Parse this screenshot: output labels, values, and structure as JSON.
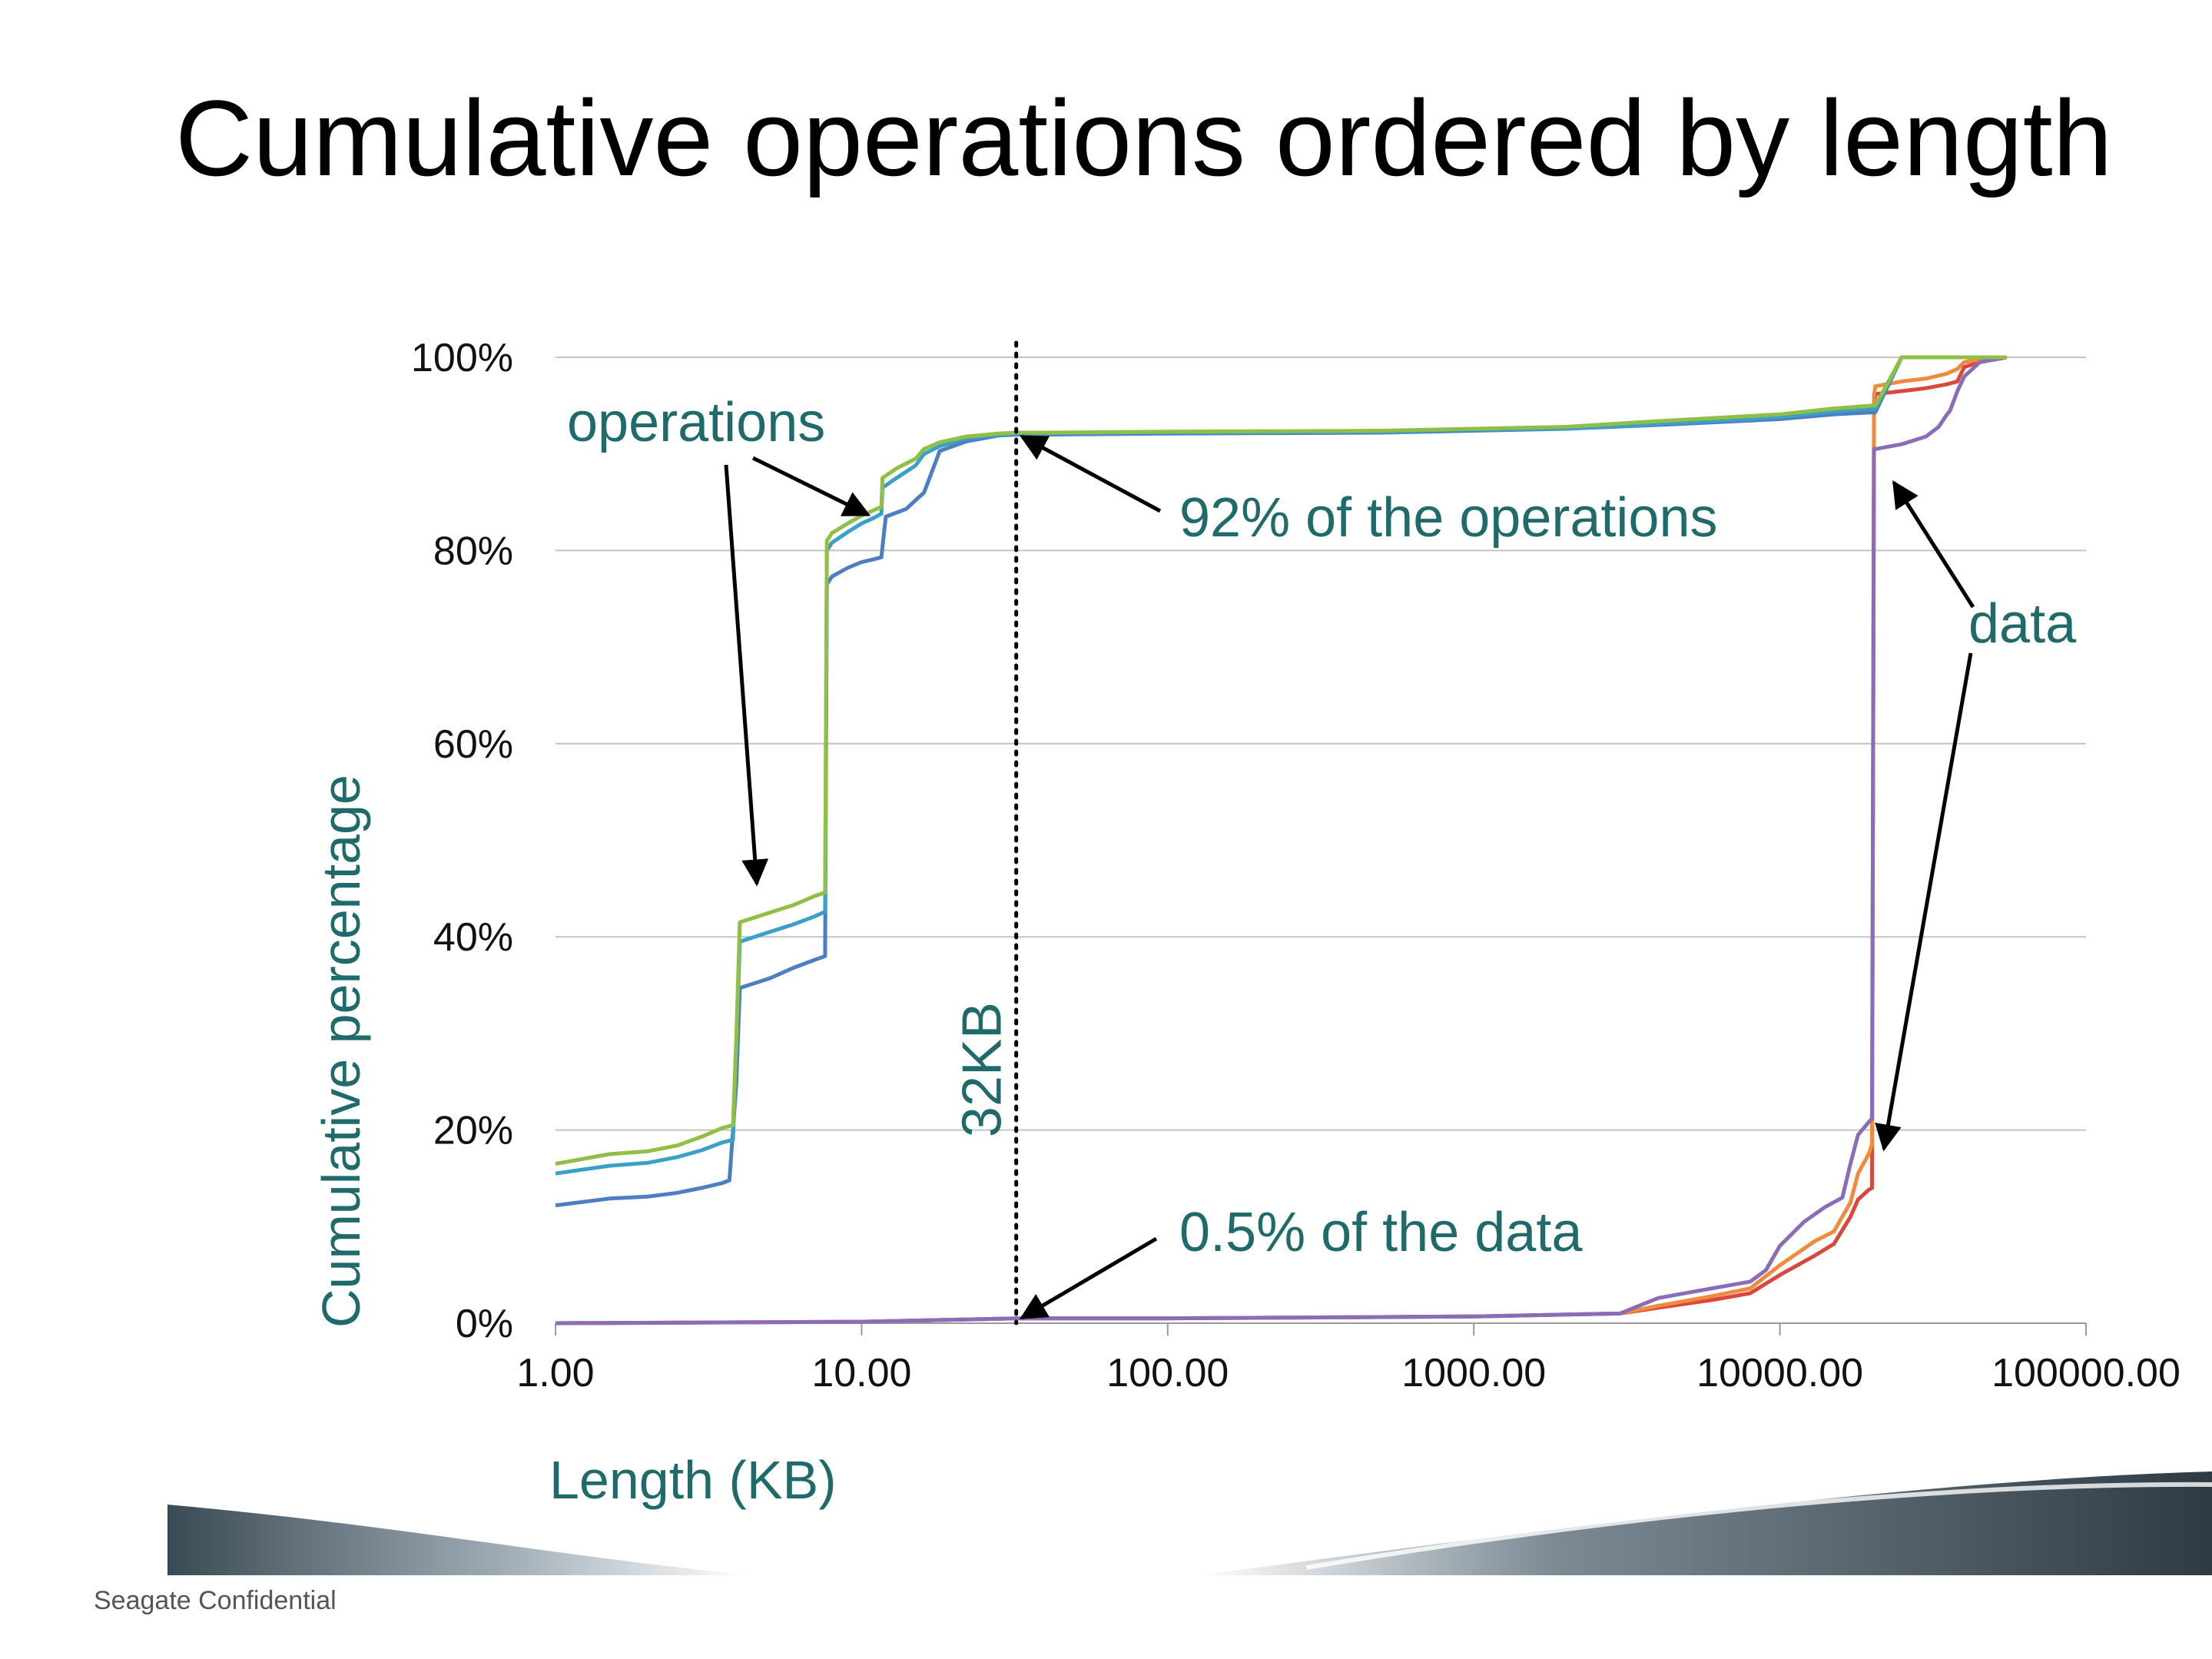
{
  "slide": {
    "title": "Cumulative operations ordered by length",
    "footer": "Seagate Confidential"
  },
  "chart_data": {
    "type": "line",
    "xscale": "log",
    "xlim": [
      1,
      100000
    ],
    "ylim": [
      0,
      100
    ],
    "grid": true,
    "xlabel": "Length (KB)",
    "ylabel": "Cumulative percentage",
    "xticks": [
      "1.00",
      "10.00",
      "100.00",
      "1000.00",
      "10000.00",
      "100000.00"
    ],
    "yticks": [
      "0%",
      "20%",
      "40%",
      "60%",
      "80%",
      "100%"
    ],
    "reference_line": {
      "x": 32,
      "label": "32KB"
    },
    "annotations": {
      "operations": "operations",
      "ops_pct": "92% of the operations",
      "data": "data",
      "data_pct": "0.5% of the data"
    },
    "series": [
      {
        "group": "operations",
        "color": "#8fbf45",
        "x": [
          1,
          1.5,
          2,
          2.5,
          3,
          3.5,
          3.8,
          3.9,
          4,
          5,
          6,
          7,
          7.6,
          7.7,
          8,
          9,
          10,
          11,
          11.6,
          11.7,
          13,
          15,
          16,
          18,
          22,
          28,
          32,
          40,
          100,
          500,
          1000,
          2000,
          4000,
          10000,
          15000,
          20000,
          20500,
          25000,
          40000,
          55000
        ],
        "y": [
          16.5,
          17.5,
          17.8,
          18.4,
          19.3,
          20.2,
          20.5,
          30,
          41.5,
          42.5,
          43.3,
          44.2,
          44.6,
          81,
          81.8,
          82.8,
          83.6,
          84.2,
          84.5,
          87.5,
          88.5,
          89.5,
          90.5,
          91.2,
          91.8,
          92.1,
          92.2,
          92.2,
          92.3,
          92.4,
          92.6,
          92.8,
          93.4,
          94.1,
          94.7,
          95,
          95,
          100,
          100,
          100
        ]
      },
      {
        "group": "operations",
        "color": "#3aa0c8",
        "x": [
          1,
          1.5,
          2,
          2.5,
          3,
          3.5,
          3.8,
          3.9,
          4,
          5,
          6,
          7,
          7.6,
          7.7,
          8,
          9,
          10,
          11,
          11.6,
          11.7,
          13,
          15,
          16,
          18,
          22,
          28,
          32,
          40,
          100,
          500,
          1000,
          2000,
          4000,
          10000,
          15000,
          20000,
          20500,
          25000,
          40000,
          55000
        ],
        "y": [
          15.5,
          16.3,
          16.6,
          17.2,
          17.9,
          18.7,
          19,
          29,
          39.5,
          40.5,
          41.3,
          42.1,
          42.6,
          80,
          80.8,
          81.9,
          82.8,
          83.4,
          83.8,
          86.5,
          87.5,
          88.8,
          90,
          90.8,
          91.6,
          92,
          92.1,
          92.1,
          92.2,
          92.3,
          92.5,
          92.6,
          93.1,
          93.8,
          94.4,
          94.7,
          94.7,
          100,
          100,
          100
        ]
      },
      {
        "group": "operations",
        "color": "#4d7ec2",
        "x": [
          1,
          1.5,
          2,
          2.5,
          3,
          3.5,
          3.7,
          3.9,
          4,
          5,
          6,
          7,
          7.6,
          7.7,
          8,
          9,
          10,
          11,
          11.6,
          12,
          14,
          15,
          16,
          18,
          22,
          28,
          32,
          40,
          100,
          500,
          1000,
          2000,
          4000,
          10000,
          15000,
          20000,
          20500,
          25000,
          40000,
          55000
        ],
        "y": [
          12.2,
          12.9,
          13.1,
          13.5,
          14,
          14.5,
          14.8,
          25,
          34.7,
          35.7,
          36.8,
          37.6,
          38,
          76.5,
          77.3,
          78.2,
          78.8,
          79.1,
          79.3,
          83.5,
          84.3,
          85.2,
          86,
          90.3,
          91.3,
          91.9,
          92,
          92,
          92.1,
          92.2,
          92.4,
          92.6,
          93,
          93.6,
          94.1,
          94.3,
          94.3,
          100,
          100,
          100
        ]
      },
      {
        "group": "data",
        "color": "#d9483a",
        "x": [
          1,
          10,
          32,
          100,
          1000,
          3000,
          4000,
          6000,
          8000,
          10000,
          13000,
          15000,
          17000,
          18000,
          19500,
          20000,
          20300,
          20500,
          25000,
          30000,
          35000,
          38000,
          40000,
          45000,
          55000
        ],
        "y": [
          0,
          0.15,
          0.5,
          0.5,
          0.7,
          1,
          1.6,
          2.4,
          3.1,
          5,
          7,
          8.2,
          11,
          12.8,
          13.8,
          14,
          95,
          96.2,
          96.5,
          96.8,
          97.2,
          97.5,
          99,
          99.5,
          100
        ]
      },
      {
        "group": "data",
        "color": "#f08a3c",
        "x": [
          1,
          10,
          32,
          100,
          1000,
          3000,
          4000,
          6000,
          8000,
          10000,
          13000,
          15000,
          17000,
          18000,
          19500,
          20000,
          20300,
          20500,
          25000,
          30000,
          35000,
          38000,
          40000,
          45000,
          55000
        ],
        "y": [
          0,
          0.15,
          0.5,
          0.5,
          0.7,
          1,
          1.8,
          2.8,
          3.6,
          6,
          8.5,
          9.5,
          12.5,
          15.5,
          17.5,
          18.5,
          96,
          97,
          97.5,
          97.8,
          98.3,
          98.8,
          99.5,
          99.8,
          100
        ]
      },
      {
        "group": "data",
        "color": "#8a6cb8",
        "x": [
          1,
          10,
          32,
          100,
          1000,
          3000,
          4000,
          6000,
          8000,
          9000,
          10000,
          12000,
          14000,
          16000,
          17000,
          18000,
          19500,
          20000,
          20300,
          20500,
          25000,
          30000,
          33000,
          35000,
          36000,
          38000,
          40000,
          45000,
          55000
        ],
        "y": [
          0,
          0.15,
          0.5,
          0.5,
          0.7,
          1,
          2.6,
          3.6,
          4.3,
          5.5,
          8,
          10.5,
          12,
          13,
          16.5,
          19.5,
          20.8,
          21.2,
          90.5,
          90.5,
          91,
          91.8,
          92.8,
          94,
          94.5,
          96.5,
          98,
          99.5,
          100
        ]
      }
    ]
  }
}
